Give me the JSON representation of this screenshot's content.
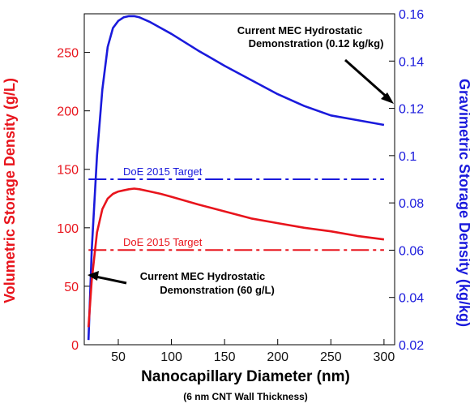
{
  "chart_data": {
    "type": "line",
    "x": [
      22,
      25,
      30,
      35,
      40,
      45,
      50,
      55,
      60,
      65,
      70,
      80,
      90,
      100,
      125,
      150,
      175,
      200,
      225,
      250,
      275,
      300
    ],
    "xlabel": "Nanocapillary Diameter (nm)",
    "xnote": "(6 nm CNT Wall Thickness)",
    "xlim": [
      18,
      310
    ],
    "xticks": [
      "50",
      "100",
      "150",
      "200",
      "250",
      "300"
    ],
    "ylabel_left": "Volumetric Storage Density (g/L)",
    "ylim_left": [
      0,
      283
    ],
    "yticks_left": [
      "0",
      "50",
      "100",
      "150",
      "200",
      "250"
    ],
    "ylabel_right": "Gravimetric Storage Density (kg/kg)",
    "ylim_right": [
      0.02,
      0.16
    ],
    "yticks_right": [
      "0.02",
      "0.04",
      "0.06",
      "0.08",
      "0.1",
      "0.12",
      "0.14",
      "0.16"
    ],
    "series": [
      {
        "axis": "right",
        "color": "#1a1adc",
        "values": [
          0.022,
          0.06,
          0.1,
          0.128,
          0.146,
          0.154,
          0.157,
          0.1585,
          0.159,
          0.159,
          0.1585,
          0.1565,
          0.154,
          0.1515,
          0.1445,
          0.138,
          0.132,
          0.126,
          0.121,
          0.117,
          0.115,
          0.113
        ]
      },
      {
        "axis": "left",
        "color": "#e8141c",
        "values": [
          15,
          55,
          96,
          116,
          125,
          129,
          131,
          132,
          133,
          133.5,
          133,
          131,
          129,
          126.5,
          120,
          114,
          108,
          104,
          100,
          97,
          93,
          90
        ]
      }
    ],
    "targets": [
      {
        "label": "DoE 2015 Target",
        "axis": "right",
        "value": 0.09,
        "color": "#1a1adc"
      },
      {
        "label": "DoE 2015 Target",
        "axis": "left",
        "value": 81,
        "color": "#e8141c"
      }
    ],
    "annotations": [
      {
        "line1": "Current MEC Hydrostatic",
        "line2": "Demonstration (0.12 kg/kg)"
      },
      {
        "line1": "Current MEC Hydrostatic",
        "line2": "Demonstration (60 g/L)"
      }
    ]
  }
}
